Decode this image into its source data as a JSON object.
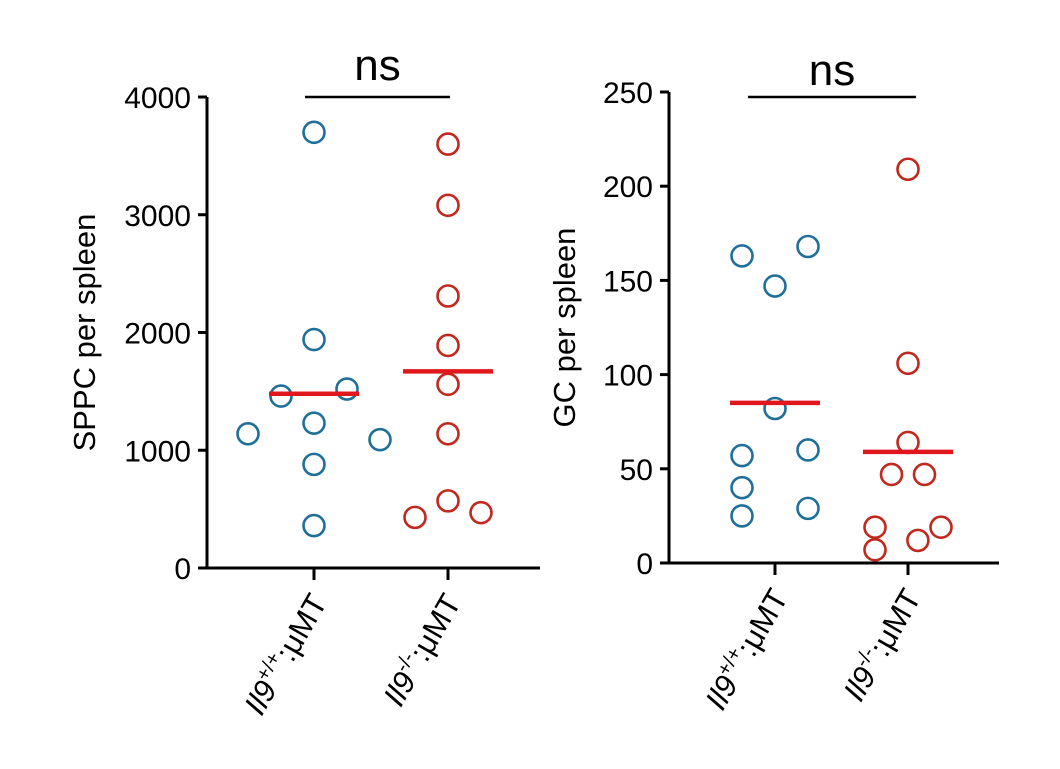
{
  "colors": {
    "wt": "#1f6f99",
    "ko": "#c1281e",
    "mean": "#e0171c"
  },
  "chart_data": [
    {
      "type": "scatter",
      "ylabel": "SPPC per spleen",
      "ylim": [
        0,
        4000
      ],
      "yticks": [
        0,
        1000,
        2000,
        3000,
        4000
      ],
      "ytick_labels": [
        "0",
        "1000",
        "2000",
        "3000",
        "4000"
      ],
      "significance": "ns",
      "groups": [
        {
          "name": "Il9+/+:μMT",
          "base": "Il9",
          "sup": "+/+",
          "suffix": ":μMT",
          "color_key": "wt",
          "mean": 1480,
          "points": [
            {
              "offset": 0,
              "value": 3700
            },
            {
              "offset": 0,
              "value": 1940
            },
            {
              "offset": 1,
              "value": 1520
            },
            {
              "offset": -1,
              "value": 1460
            },
            {
              "offset": 0,
              "value": 1230
            },
            {
              "offset": -2,
              "value": 1140
            },
            {
              "offset": 2,
              "value": 1090
            },
            {
              "offset": 0,
              "value": 880
            },
            {
              "offset": 0,
              "value": 360
            }
          ]
        },
        {
          "name": "Il9-/-:μMT",
          "base": "Il9",
          "sup": "-/-",
          "suffix": ":μMT",
          "color_key": "ko",
          "mean": 1670,
          "points": [
            {
              "offset": 0,
              "value": 3600
            },
            {
              "offset": 0,
              "value": 3080
            },
            {
              "offset": 0,
              "value": 2310
            },
            {
              "offset": 0,
              "value": 1890
            },
            {
              "offset": 0,
              "value": 1560
            },
            {
              "offset": 0,
              "value": 1140
            },
            {
              "offset": 0,
              "value": 570
            },
            {
              "offset": 1,
              "value": 470
            },
            {
              "offset": -1,
              "value": 430
            }
          ]
        }
      ]
    },
    {
      "type": "scatter",
      "ylabel": "GC per spleen",
      "ylim": [
        0,
        250
      ],
      "yticks": [
        0,
        50,
        100,
        150,
        200,
        250
      ],
      "ytick_labels": [
        "0",
        "50",
        "100",
        "150",
        "200",
        "250"
      ],
      "significance": "ns",
      "groups": [
        {
          "name": "Il9+/+:μMT",
          "base": "Il9",
          "sup": "+/+",
          "suffix": ":μMT",
          "color_key": "wt",
          "mean": 85,
          "points": [
            {
              "offset": 1,
              "value": 168
            },
            {
              "offset": -1,
              "value": 163
            },
            {
              "offset": 0,
              "value": 147
            },
            {
              "offset": 0,
              "value": 82
            },
            {
              "offset": 1,
              "value": 60
            },
            {
              "offset": -1,
              "value": 57
            },
            {
              "offset": -1,
              "value": 40
            },
            {
              "offset": 1,
              "value": 29
            },
            {
              "offset": -1,
              "value": 25
            }
          ]
        },
        {
          "name": "Il9-/-:μMT",
          "base": "Il9",
          "sup": "-/-",
          "suffix": ":μMT",
          "color_key": "ko",
          "mean": 59,
          "points": [
            {
              "offset": 0,
              "value": 209
            },
            {
              "offset": 0,
              "value": 106
            },
            {
              "offset": 0,
              "value": 64
            },
            {
              "offset": -0.5,
              "value": 47
            },
            {
              "offset": 0.5,
              "value": 47
            },
            {
              "offset": -1,
              "value": 19
            },
            {
              "offset": 1,
              "value": 19
            },
            {
              "offset": 0.3,
              "value": 12
            },
            {
              "offset": -1,
              "value": 7
            }
          ]
        }
      ]
    }
  ]
}
